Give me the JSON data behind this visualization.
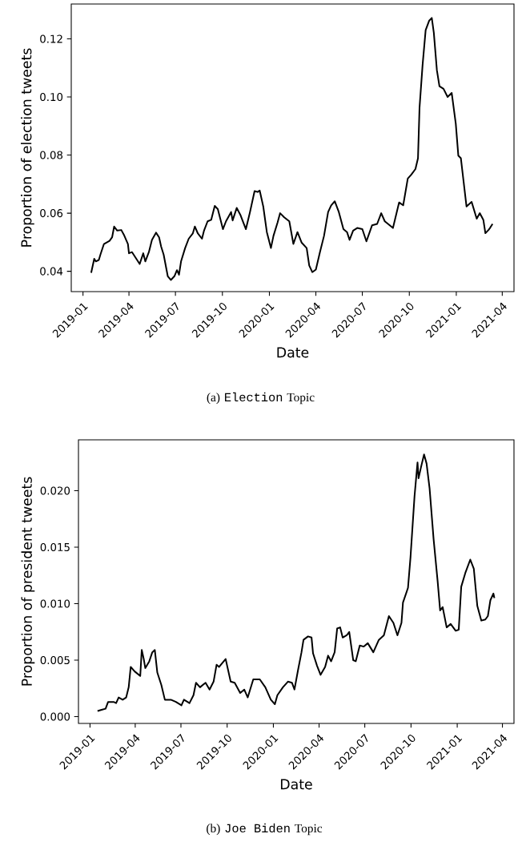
{
  "chart_data": [
    {
      "type": "line",
      "xlabel": "Date",
      "ylabel": "Proportion of election tweets",
      "color": "#000000",
      "annotations": [
        "(a)",
        "Election",
        "Topic"
      ],
      "xlim": [
        "2018-12-09",
        "2021-04-24"
      ],
      "ylim": [
        0.033,
        0.132
      ],
      "xticks": [
        "2019-01",
        "2019-04",
        "2019-07",
        "2019-10",
        "2020-01",
        "2020-04",
        "2020-07",
        "2020-10",
        "2021-01",
        "2021-04"
      ],
      "yticks": [
        0.04,
        0.06,
        0.08,
        {
          "value": 0.1,
          "label": "0.10"
        },
        0.12
      ],
      "x": [
        "2019-01-17",
        "2019-01-23",
        "2019-01-26",
        "2019-02-01",
        "2019-02-04",
        "2019-02-11",
        "2019-02-22",
        "2019-02-27",
        "2019-03-03",
        "2019-03-09",
        "2019-03-17",
        "2019-03-22",
        "2019-03-30",
        "2019-04-01",
        "2019-04-07",
        "2019-04-22",
        "2019-04-29",
        "2019-05-03",
        "2019-05-10",
        "2019-05-16",
        "2019-05-24",
        "2019-05-30",
        "2019-06-03",
        "2019-06-08",
        "2019-06-16",
        "2019-06-22",
        "2019-06-29",
        "2019-07-04",
        "2019-07-08",
        "2019-07-12",
        "2019-07-20",
        "2019-07-27",
        "2019-08-04",
        "2019-08-08",
        "2019-08-14",
        "2019-08-22",
        "2019-08-26",
        "2019-09-02",
        "2019-09-09",
        "2019-09-16",
        "2019-09-22",
        "2019-10-02",
        "2019-10-08",
        "2019-10-18",
        "2019-10-21",
        "2019-10-29",
        "2019-11-05",
        "2019-11-16",
        "2019-11-24",
        "2019-12-03",
        "2019-12-09",
        "2019-12-13",
        "2019-12-20",
        "2019-12-27",
        "2020-01-04",
        "2020-01-09",
        "2020-01-17",
        "2020-01-22",
        "2020-01-30",
        "2020-02-09",
        "2020-02-17",
        "2020-02-25",
        "2020-03-04",
        "2020-03-14",
        "2020-03-19",
        "2020-03-25",
        "2020-04-01",
        "2020-04-09",
        "2020-04-17",
        "2020-04-25",
        "2020-05-01",
        "2020-05-08",
        "2020-05-16",
        "2020-05-25",
        "2020-06-01",
        "2020-06-06",
        "2020-06-13",
        "2020-06-21",
        "2020-07-01",
        "2020-07-09",
        "2020-07-20",
        "2020-07-30",
        "2020-08-07",
        "2020-08-14",
        "2020-08-30",
        "2020-09-11",
        "2020-09-19",
        "2020-09-28",
        "2020-10-05",
        "2020-10-13",
        "2020-10-18",
        "2020-10-21",
        "2020-10-27",
        "2020-11-02",
        "2020-11-09",
        "2020-11-14",
        "2020-11-18",
        "2020-11-24",
        "2020-11-29",
        "2020-12-07",
        "2020-12-15",
        "2020-12-23",
        "2020-12-31",
        "2021-01-05",
        "2021-01-10",
        "2021-01-21",
        "2021-01-31",
        "2021-02-10",
        "2021-02-16",
        "2021-02-23",
        "2021-02-27",
        "2021-03-05",
        "2021-03-08",
        "2021-03-13"
      ],
      "values": [
        0.0395,
        0.0443,
        0.0434,
        0.0439,
        0.0457,
        0.0494,
        0.0505,
        0.0517,
        0.0554,
        0.054,
        0.0542,
        0.0526,
        0.0494,
        0.0462,
        0.0466,
        0.0425,
        0.0462,
        0.0434,
        0.0466,
        0.0508,
        0.0533,
        0.0517,
        0.0485,
        0.0457,
        0.0383,
        0.037,
        0.0383,
        0.0404,
        0.0388,
        0.0434,
        0.048,
        0.0512,
        0.053,
        0.0554,
        0.053,
        0.0512,
        0.054,
        0.0572,
        0.0577,
        0.0625,
        0.0614,
        0.0545,
        0.0572,
        0.0604,
        0.0575,
        0.0618,
        0.0595,
        0.0545,
        0.0604,
        0.0676,
        0.0673,
        0.0678,
        0.0623,
        0.0535,
        0.048,
        0.0522,
        0.0568,
        0.06,
        0.0586,
        0.0572,
        0.0494,
        0.0535,
        0.0499,
        0.048,
        0.042,
        0.0397,
        0.0406,
        0.0466,
        0.0522,
        0.0604,
        0.0627,
        0.0641,
        0.0604,
        0.0545,
        0.0535,
        0.0508,
        0.054,
        0.0549,
        0.0545,
        0.0503,
        0.0558,
        0.0563,
        0.06,
        0.0572,
        0.0549,
        0.0637,
        0.0627,
        0.0719,
        0.0733,
        0.0752,
        0.0789,
        0.0963,
        0.111,
        0.123,
        0.1263,
        0.1272,
        0.1221,
        0.1092,
        0.1037,
        0.1028,
        0.1,
        0.1014,
        0.0908,
        0.0798,
        0.0789,
        0.0623,
        0.0639,
        0.0581,
        0.06,
        0.0577,
        0.0531,
        0.0542,
        0.0549,
        0.0563
      ]
    },
    {
      "type": "line",
      "xlabel": "Date",
      "ylabel": "Proportion of president tweets",
      "color": "#000000",
      "annotations": [
        "(b)",
        "Joe Biden",
        "Topic"
      ],
      "xlim": [
        "2018-12-09",
        "2021-04-24"
      ],
      "ylim": [
        -0.0006,
        0.0245
      ],
      "xticks": [
        "2019-01",
        "2019-04",
        "2019-07",
        "2019-10",
        "2020-01",
        "2020-04",
        "2020-07",
        "2020-10",
        "2021-01",
        "2021-04"
      ],
      "yticks": [
        {
          "value": 0,
          "label": "0.000"
        },
        0.005,
        {
          "value": 0.01,
          "label": "0.010"
        },
        0.015,
        {
          "value": 0.02,
          "label": "0.020"
        }
      ],
      "x": [
        "2019-01-16",
        "2019-01-24",
        "2019-02-01",
        "2019-02-06",
        "2019-02-17",
        "2019-02-22",
        "2019-02-27",
        "2019-03-07",
        "2019-03-14",
        "2019-03-19",
        "2019-03-23",
        "2019-03-31",
        "2019-04-11",
        "2019-04-14",
        "2019-04-18",
        "2019-04-21",
        "2019-04-29",
        "2019-05-05",
        "2019-05-10",
        "2019-05-15",
        "2019-05-23",
        "2019-05-30",
        "2019-06-11",
        "2019-06-21",
        "2019-07-02",
        "2019-07-07",
        "2019-07-18",
        "2019-07-26",
        "2019-07-31",
        "2019-08-08",
        "2019-08-19",
        "2019-08-27",
        "2019-09-04",
        "2019-09-10",
        "2019-09-15",
        "2019-09-28",
        "2019-10-08",
        "2019-10-16",
        "2019-10-27",
        "2019-11-04",
        "2019-11-11",
        "2019-11-22",
        "2019-12-05",
        "2019-12-16",
        "2019-12-27",
        "2020-01-04",
        "2020-01-09",
        "2020-01-20",
        "2020-01-30",
        "2020-02-07",
        "2020-02-12",
        "2020-02-19",
        "2020-02-26",
        "2020-03-01",
        "2020-03-10",
        "2020-03-17",
        "2020-03-20",
        "2020-03-28",
        "2020-04-04",
        "2020-04-13",
        "2020-04-19",
        "2020-04-25",
        "2020-05-02",
        "2020-05-07",
        "2020-05-13",
        "2020-05-18",
        "2020-05-26",
        "2020-05-31",
        "2020-06-08",
        "2020-06-13",
        "2020-06-21",
        "2020-06-29",
        "2020-07-07",
        "2020-07-18",
        "2020-07-29",
        "2020-08-08",
        "2020-08-18",
        "2020-08-27",
        "2020-09-04",
        "2020-09-12",
        "2020-09-15",
        "2020-09-25",
        "2020-09-30",
        "2020-10-08",
        "2020-10-14",
        "2020-10-16",
        "2020-10-21",
        "2020-10-27",
        "2020-11-01",
        "2020-11-07",
        "2020-11-15",
        "2020-11-23",
        "2020-11-28",
        "2020-12-03",
        "2020-12-11",
        "2020-12-19",
        "2020-12-29",
        "2021-01-04",
        "2021-01-09",
        "2021-01-17",
        "2021-01-27",
        "2021-02-03",
        "2021-02-10",
        "2021-02-18",
        "2021-02-26",
        "2021-03-03",
        "2021-03-08",
        "2021-03-14",
        "2021-03-16"
      ],
      "values": [
        0.0005,
        0.0006,
        0.0007,
        0.0013,
        0.0013,
        0.0012,
        0.0017,
        0.0015,
        0.0017,
        0.0026,
        0.0044,
        0.004,
        0.0036,
        0.0059,
        0.0051,
        0.0043,
        0.0049,
        0.0057,
        0.0059,
        0.0039,
        0.0028,
        0.0015,
        0.0015,
        0.0013,
        0.001,
        0.0015,
        0.0012,
        0.0019,
        0.003,
        0.0026,
        0.003,
        0.0024,
        0.0031,
        0.0046,
        0.0044,
        0.0051,
        0.0031,
        0.003,
        0.0021,
        0.0024,
        0.0017,
        0.0033,
        0.0033,
        0.0026,
        0.0015,
        0.0011,
        0.0019,
        0.0026,
        0.0031,
        0.003,
        0.0024,
        0.0041,
        0.0057,
        0.0068,
        0.0071,
        0.007,
        0.0056,
        0.0045,
        0.0037,
        0.0044,
        0.0054,
        0.0049,
        0.0057,
        0.0078,
        0.0079,
        0.007,
        0.0072,
        0.0075,
        0.005,
        0.0049,
        0.0063,
        0.0062,
        0.0065,
        0.0057,
        0.0068,
        0.0072,
        0.0089,
        0.0083,
        0.0072,
        0.0083,
        0.0101,
        0.0114,
        0.0141,
        0.0195,
        0.0225,
        0.0211,
        0.0221,
        0.0232,
        0.0224,
        0.0202,
        0.0157,
        0.012,
        0.0094,
        0.0097,
        0.0079,
        0.0082,
        0.0076,
        0.0077,
        0.0115,
        0.0127,
        0.0139,
        0.0131,
        0.0098,
        0.0085,
        0.0086,
        0.0089,
        0.0103,
        0.0109,
        0.0105
      ]
    }
  ]
}
